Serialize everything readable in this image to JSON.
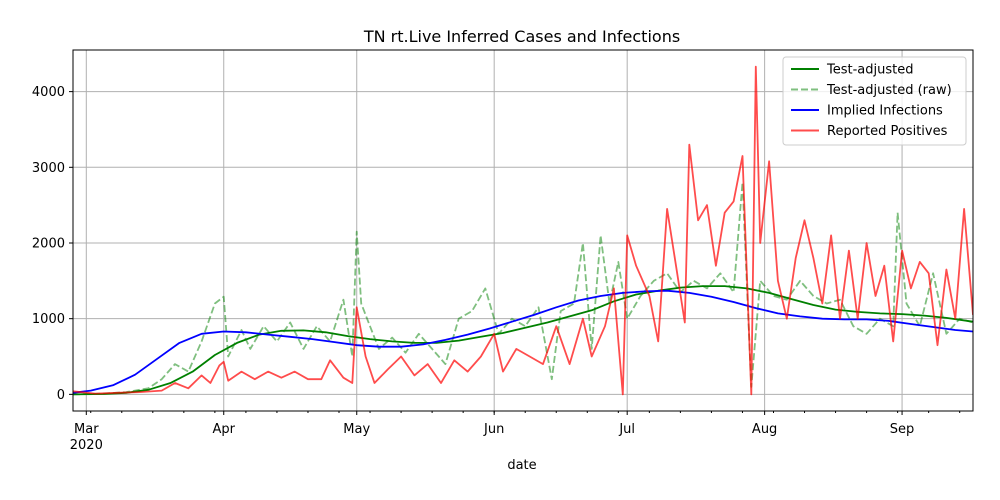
{
  "chart_data": {
    "type": "line",
    "title": "TN rt.Live Inferred Cases and Infections",
    "xlabel": "date",
    "ylabel": "",
    "x_range": [
      "2020-02-27",
      "2020-09-17"
    ],
    "ylim": [
      -220,
      4550
    ],
    "grid": true,
    "legend_position": "top-right",
    "x_major_ticks": [
      {
        "date": "2020-03-01",
        "label": "Mar",
        "sublabel": "2020"
      },
      {
        "date": "2020-04-01",
        "label": "Apr",
        "sublabel": ""
      },
      {
        "date": "2020-05-01",
        "label": "May",
        "sublabel": ""
      },
      {
        "date": "2020-06-01",
        "label": "Jun",
        "sublabel": ""
      },
      {
        "date": "2020-07-01",
        "label": "Jul",
        "sublabel": ""
      },
      {
        "date": "2020-08-01",
        "label": "Aug",
        "sublabel": ""
      },
      {
        "date": "2020-09-01",
        "label": "Sep",
        "sublabel": ""
      }
    ],
    "y_ticks": [
      0,
      1000,
      2000,
      3000,
      4000
    ],
    "series": [
      {
        "name": "Test-adjusted",
        "color": "#008000",
        "style": "solid",
        "points": [
          [
            "2020-02-27",
            0
          ],
          [
            "2020-03-05",
            5
          ],
          [
            "2020-03-10",
            20
          ],
          [
            "2020-03-15",
            60
          ],
          [
            "2020-03-20",
            150
          ],
          [
            "2020-03-25",
            300
          ],
          [
            "2020-03-30",
            520
          ],
          [
            "2020-04-04",
            680
          ],
          [
            "2020-04-09",
            790
          ],
          [
            "2020-04-14",
            840
          ],
          [
            "2020-04-19",
            845
          ],
          [
            "2020-04-24",
            820
          ],
          [
            "2020-04-29",
            770
          ],
          [
            "2020-05-04",
            730
          ],
          [
            "2020-05-09",
            700
          ],
          [
            "2020-05-14",
            680
          ],
          [
            "2020-05-19",
            680
          ],
          [
            "2020-05-24",
            710
          ],
          [
            "2020-05-29",
            760
          ],
          [
            "2020-06-03",
            810
          ],
          [
            "2020-06-08",
            880
          ],
          [
            "2020-06-13",
            950
          ],
          [
            "2020-06-18",
            1030
          ],
          [
            "2020-06-23",
            1110
          ],
          [
            "2020-06-28",
            1230
          ],
          [
            "2020-07-03",
            1320
          ],
          [
            "2020-07-08",
            1370
          ],
          [
            "2020-07-13",
            1410
          ],
          [
            "2020-07-18",
            1430
          ],
          [
            "2020-07-23",
            1430
          ],
          [
            "2020-07-28",
            1400
          ],
          [
            "2020-08-02",
            1340
          ],
          [
            "2020-08-07",
            1260
          ],
          [
            "2020-08-12",
            1180
          ],
          [
            "2020-08-17",
            1120
          ],
          [
            "2020-08-22",
            1090
          ],
          [
            "2020-08-27",
            1070
          ],
          [
            "2020-09-01",
            1060
          ],
          [
            "2020-09-06",
            1040
          ],
          [
            "2020-09-11",
            1010
          ],
          [
            "2020-09-17",
            960
          ]
        ]
      },
      {
        "name": "Test-adjusted (raw)",
        "color": "#008000",
        "style": "dashed",
        "points": [
          [
            "2020-02-27",
            0
          ],
          [
            "2020-03-05",
            10
          ],
          [
            "2020-03-10",
            30
          ],
          [
            "2020-03-15",
            80
          ],
          [
            "2020-03-18",
            200
          ],
          [
            "2020-03-21",
            400
          ],
          [
            "2020-03-24",
            300
          ],
          [
            "2020-03-27",
            700
          ],
          [
            "2020-03-30",
            1200
          ],
          [
            "2020-04-01",
            1290
          ],
          [
            "2020-04-02",
            500
          ],
          [
            "2020-04-05",
            850
          ],
          [
            "2020-04-07",
            600
          ],
          [
            "2020-04-10",
            900
          ],
          [
            "2020-04-13",
            700
          ],
          [
            "2020-04-16",
            950
          ],
          [
            "2020-04-19",
            600
          ],
          [
            "2020-04-22",
            900
          ],
          [
            "2020-04-25",
            700
          ],
          [
            "2020-04-28",
            1250
          ],
          [
            "2020-04-30",
            500
          ],
          [
            "2020-05-01",
            2150
          ],
          [
            "2020-05-02",
            1200
          ],
          [
            "2020-05-04",
            900
          ],
          [
            "2020-05-06",
            600
          ],
          [
            "2020-05-09",
            750
          ],
          [
            "2020-05-12",
            550
          ],
          [
            "2020-05-15",
            800
          ],
          [
            "2020-05-18",
            600
          ],
          [
            "2020-05-21",
            400
          ],
          [
            "2020-05-24",
            1000
          ],
          [
            "2020-05-27",
            1100
          ],
          [
            "2020-05-30",
            1400
          ],
          [
            "2020-06-02",
            800
          ],
          [
            "2020-06-05",
            1000
          ],
          [
            "2020-06-08",
            900
          ],
          [
            "2020-06-11",
            1150
          ],
          [
            "2020-06-14",
            200
          ],
          [
            "2020-06-16",
            1100
          ],
          [
            "2020-06-19",
            1200
          ],
          [
            "2020-06-21",
            2000
          ],
          [
            "2020-06-23",
            600
          ],
          [
            "2020-06-25",
            2100
          ],
          [
            "2020-06-27",
            1200
          ],
          [
            "2020-06-29",
            1750
          ],
          [
            "2020-07-01",
            1000
          ],
          [
            "2020-07-04",
            1300
          ],
          [
            "2020-07-07",
            1500
          ],
          [
            "2020-07-10",
            1600
          ],
          [
            "2020-07-13",
            1350
          ],
          [
            "2020-07-16",
            1500
          ],
          [
            "2020-07-19",
            1400
          ],
          [
            "2020-07-22",
            1600
          ],
          [
            "2020-07-25",
            1350
          ],
          [
            "2020-07-27",
            2800
          ],
          [
            "2020-07-29",
            100
          ],
          [
            "2020-07-31",
            1500
          ],
          [
            "2020-08-03",
            1300
          ],
          [
            "2020-08-06",
            1250
          ],
          [
            "2020-08-09",
            1500
          ],
          [
            "2020-08-12",
            1300
          ],
          [
            "2020-08-15",
            1200
          ],
          [
            "2020-08-18",
            1250
          ],
          [
            "2020-08-21",
            900
          ],
          [
            "2020-08-24",
            800
          ],
          [
            "2020-08-27",
            1000
          ],
          [
            "2020-08-30",
            900
          ],
          [
            "2020-08-31",
            2400
          ],
          [
            "2020-09-02",
            1200
          ],
          [
            "2020-09-05",
            900
          ],
          [
            "2020-09-08",
            1600
          ],
          [
            "2020-09-11",
            800
          ],
          [
            "2020-09-14",
            1000
          ],
          [
            "2020-09-17",
            950
          ]
        ]
      },
      {
        "name": "Implied Infections",
        "color": "#0000ff",
        "style": "solid",
        "points": [
          [
            "2020-02-27",
            20
          ],
          [
            "2020-03-02",
            50
          ],
          [
            "2020-03-07",
            120
          ],
          [
            "2020-03-12",
            260
          ],
          [
            "2020-03-17",
            470
          ],
          [
            "2020-03-22",
            680
          ],
          [
            "2020-03-27",
            800
          ],
          [
            "2020-04-01",
            830
          ],
          [
            "2020-04-06",
            820
          ],
          [
            "2020-04-11",
            790
          ],
          [
            "2020-04-16",
            760
          ],
          [
            "2020-04-21",
            730
          ],
          [
            "2020-04-26",
            690
          ],
          [
            "2020-05-01",
            650
          ],
          [
            "2020-05-06",
            630
          ],
          [
            "2020-05-11",
            630
          ],
          [
            "2020-05-16",
            660
          ],
          [
            "2020-05-21",
            720
          ],
          [
            "2020-05-26",
            790
          ],
          [
            "2020-05-31",
            870
          ],
          [
            "2020-06-05",
            960
          ],
          [
            "2020-06-10",
            1050
          ],
          [
            "2020-06-15",
            1150
          ],
          [
            "2020-06-20",
            1240
          ],
          [
            "2020-06-25",
            1300
          ],
          [
            "2020-06-30",
            1340
          ],
          [
            "2020-07-05",
            1360
          ],
          [
            "2020-07-10",
            1370
          ],
          [
            "2020-07-15",
            1340
          ],
          [
            "2020-07-20",
            1290
          ],
          [
            "2020-07-25",
            1220
          ],
          [
            "2020-07-30",
            1140
          ],
          [
            "2020-08-04",
            1070
          ],
          [
            "2020-08-09",
            1030
          ],
          [
            "2020-08-14",
            1000
          ],
          [
            "2020-08-19",
            990
          ],
          [
            "2020-08-24",
            990
          ],
          [
            "2020-08-29",
            970
          ],
          [
            "2020-09-03",
            930
          ],
          [
            "2020-09-08",
            890
          ],
          [
            "2020-09-13",
            850
          ],
          [
            "2020-09-17",
            830
          ]
        ]
      },
      {
        "name": "Reported Positives",
        "color": "#ff0000",
        "style": "solid",
        "points": [
          [
            "2020-02-27",
            40
          ],
          [
            "2020-03-03",
            10
          ],
          [
            "2020-03-08",
            20
          ],
          [
            "2020-03-13",
            30
          ],
          [
            "2020-03-18",
            50
          ],
          [
            "2020-03-21",
            150
          ],
          [
            "2020-03-24",
            80
          ],
          [
            "2020-03-27",
            250
          ],
          [
            "2020-03-29",
            150
          ],
          [
            "2020-03-31",
            380
          ],
          [
            "2020-04-01",
            430
          ],
          [
            "2020-04-02",
            180
          ],
          [
            "2020-04-05",
            300
          ],
          [
            "2020-04-08",
            200
          ],
          [
            "2020-04-11",
            300
          ],
          [
            "2020-04-14",
            220
          ],
          [
            "2020-04-17",
            300
          ],
          [
            "2020-04-20",
            200
          ],
          [
            "2020-04-23",
            200
          ],
          [
            "2020-04-25",
            450
          ],
          [
            "2020-04-28",
            220
          ],
          [
            "2020-04-30",
            150
          ],
          [
            "2020-05-01",
            1150
          ],
          [
            "2020-05-03",
            500
          ],
          [
            "2020-05-05",
            150
          ],
          [
            "2020-05-08",
            330
          ],
          [
            "2020-05-11",
            500
          ],
          [
            "2020-05-14",
            250
          ],
          [
            "2020-05-17",
            400
          ],
          [
            "2020-05-20",
            150
          ],
          [
            "2020-05-23",
            450
          ],
          [
            "2020-05-26",
            300
          ],
          [
            "2020-05-29",
            500
          ],
          [
            "2020-06-01",
            800
          ],
          [
            "2020-06-03",
            300
          ],
          [
            "2020-06-06",
            600
          ],
          [
            "2020-06-09",
            500
          ],
          [
            "2020-06-12",
            400
          ],
          [
            "2020-06-15",
            900
          ],
          [
            "2020-06-18",
            400
          ],
          [
            "2020-06-21",
            1000
          ],
          [
            "2020-06-23",
            500
          ],
          [
            "2020-06-26",
            900
          ],
          [
            "2020-06-28",
            1400
          ],
          [
            "2020-06-30",
            0
          ],
          [
            "2020-07-01",
            2100
          ],
          [
            "2020-07-03",
            1700
          ],
          [
            "2020-07-06",
            1300
          ],
          [
            "2020-07-08",
            700
          ],
          [
            "2020-07-10",
            2450
          ],
          [
            "2020-07-12",
            1700
          ],
          [
            "2020-07-14",
            950
          ],
          [
            "2020-07-15",
            3300
          ],
          [
            "2020-07-17",
            2300
          ],
          [
            "2020-07-19",
            2500
          ],
          [
            "2020-07-21",
            1700
          ],
          [
            "2020-07-23",
            2400
          ],
          [
            "2020-07-25",
            2550
          ],
          [
            "2020-07-27",
            3150
          ],
          [
            "2020-07-29",
            0
          ],
          [
            "2020-07-30",
            4330
          ],
          [
            "2020-07-31",
            2000
          ],
          [
            "2020-08-02",
            3080
          ],
          [
            "2020-08-04",
            1500
          ],
          [
            "2020-08-06",
            1000
          ],
          [
            "2020-08-08",
            1800
          ],
          [
            "2020-08-10",
            2300
          ],
          [
            "2020-08-12",
            1800
          ],
          [
            "2020-08-14",
            1200
          ],
          [
            "2020-08-16",
            2100
          ],
          [
            "2020-08-18",
            1000
          ],
          [
            "2020-08-20",
            1900
          ],
          [
            "2020-08-22",
            1000
          ],
          [
            "2020-08-24",
            2000
          ],
          [
            "2020-08-26",
            1300
          ],
          [
            "2020-08-28",
            1700
          ],
          [
            "2020-08-30",
            700
          ],
          [
            "2020-09-01",
            1900
          ],
          [
            "2020-09-03",
            1400
          ],
          [
            "2020-09-05",
            1750
          ],
          [
            "2020-09-07",
            1600
          ],
          [
            "2020-09-09",
            650
          ],
          [
            "2020-09-11",
            1650
          ],
          [
            "2020-09-13",
            1000
          ],
          [
            "2020-09-15",
            2450
          ],
          [
            "2020-09-17",
            1050
          ]
        ]
      }
    ]
  }
}
